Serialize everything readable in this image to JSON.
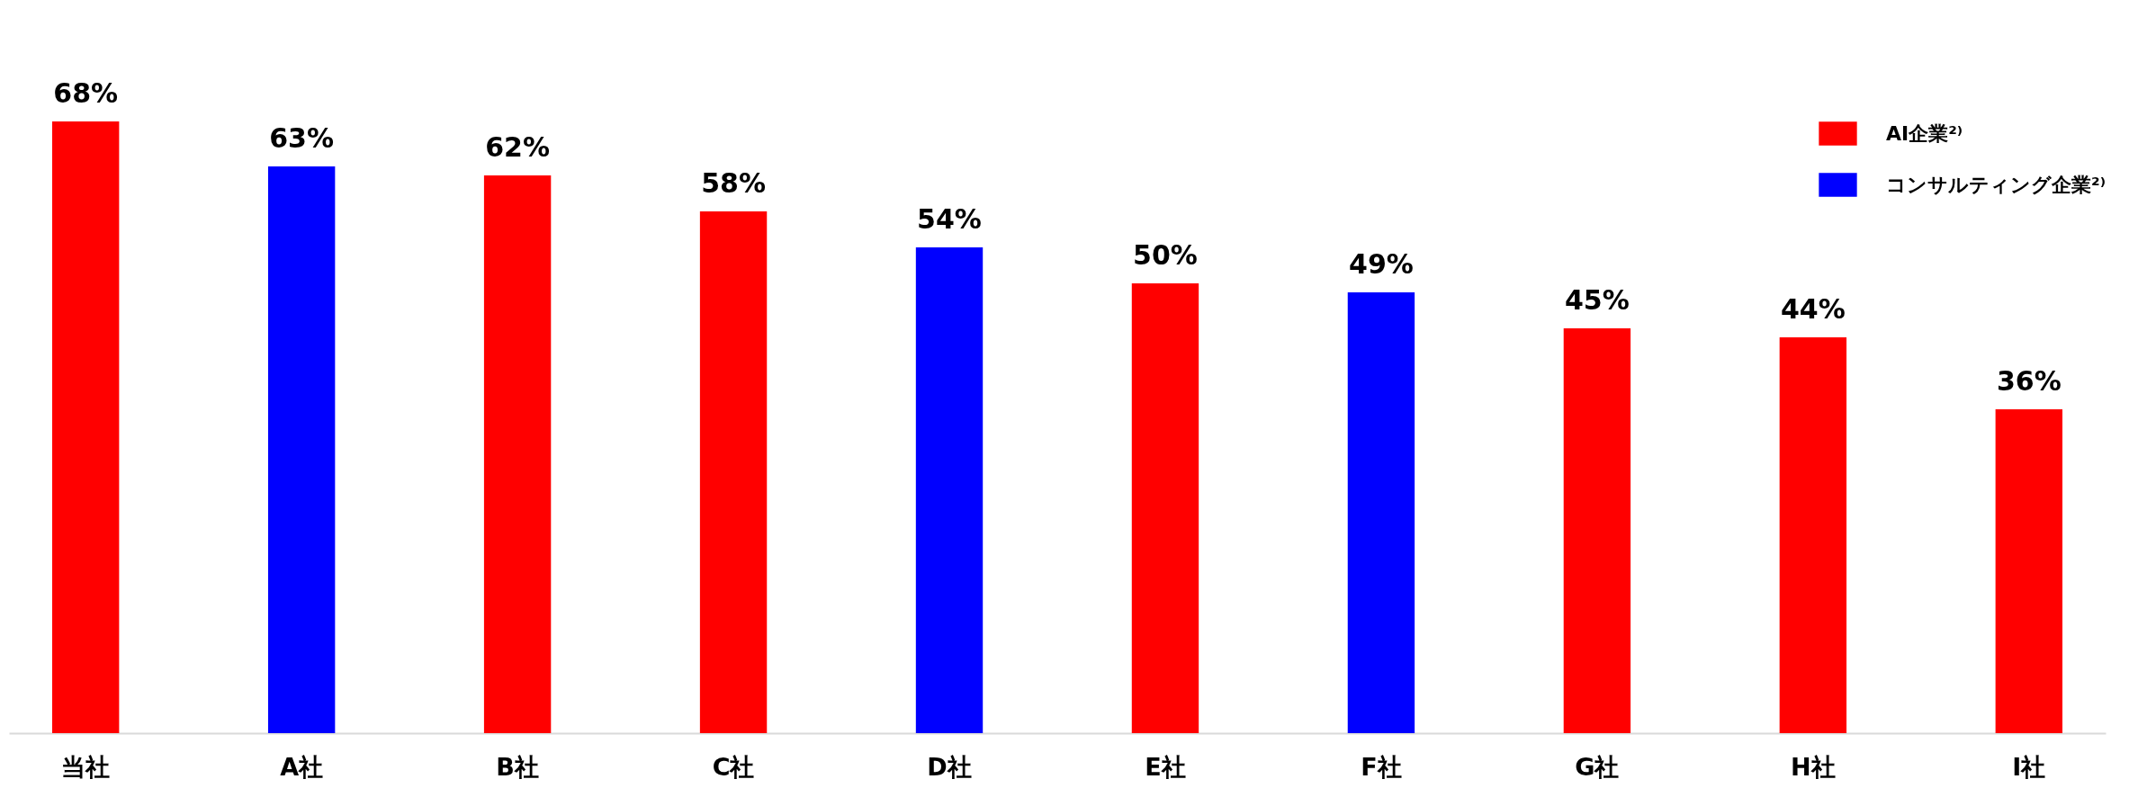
{
  "chart_data": {
    "type": "bar",
    "categories": [
      "当社",
      "A社",
      "B社",
      "C社",
      "D社",
      "E社",
      "F社",
      "G社",
      "H社",
      "I社"
    ],
    "series": [
      {
        "name": "AI企業²⁾",
        "color": "#ff0000",
        "values": [
          68,
          null,
          62,
          58,
          null,
          50,
          null,
          45,
          44,
          36
        ],
        "value_labels": [
          "68%",
          null,
          "62%",
          "58%",
          null,
          "50%",
          null,
          "45%",
          "44%",
          "36%"
        ]
      },
      {
        "name": "コンサルティング企業²⁾",
        "color": "#0000ff",
        "values": [
          null,
          63,
          null,
          null,
          54,
          null,
          49,
          null,
          null,
          null
        ],
        "value_labels": [
          null,
          "63%",
          null,
          null,
          "54%",
          null,
          "49%",
          null,
          null,
          null
        ]
      }
    ],
    "legend": "top right"
  }
}
